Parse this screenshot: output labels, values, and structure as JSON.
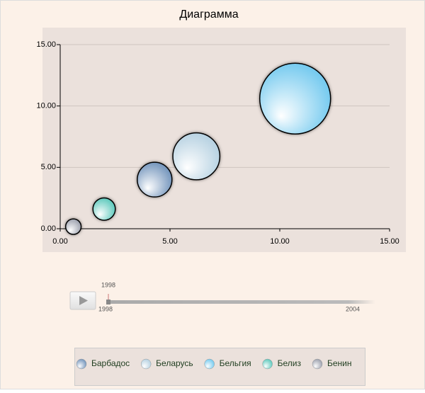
{
  "chart_data": {
    "type": "bubble",
    "title": "Диаграмма",
    "series": [
      {
        "name": "Барбадос",
        "color": "#5b82b0",
        "x": [
          4.3
        ],
        "values": [
          4.0
        ],
        "sizes": [
          6
        ]
      },
      {
        "name": "Беларусь",
        "color": "#a9c9dc",
        "x": [
          6.2
        ],
        "values": [
          5.9
        ],
        "sizes": [
          11
        ]
      },
      {
        "name": "Бельгия",
        "color": "#5bc0ec",
        "x": [
          10.7
        ],
        "values": [
          10.6
        ],
        "sizes": [
          25
        ]
      },
      {
        "name": "Белиз",
        "color": "#3fbfb0",
        "x": [
          2.0
        ],
        "values": [
          1.6
        ],
        "sizes": [
          2.5
        ]
      },
      {
        "name": "Бенин",
        "color": "#8a8f9e",
        "x": [
          0.6
        ],
        "values": [
          0.17
        ],
        "sizes": [
          1.2
        ]
      }
    ],
    "xlim": [
      0,
      15
    ],
    "ylim": [
      0,
      15
    ],
    "xticks": [
      {
        "value": 0,
        "label": "0.00"
      },
      {
        "value": 5,
        "label": "5.00"
      },
      {
        "value": 10,
        "label": "10.00"
      },
      {
        "value": 15,
        "label": "15.00"
      }
    ],
    "yticks": [
      {
        "value": 0,
        "label": "0.00"
      },
      {
        "value": 5,
        "label": "5.00"
      },
      {
        "value": 10,
        "label": "10.00"
      },
      {
        "value": 15,
        "label": "15.00"
      }
    ],
    "grid": true
  },
  "timeline": {
    "current": "1998",
    "start": "1998",
    "end": "2004"
  }
}
